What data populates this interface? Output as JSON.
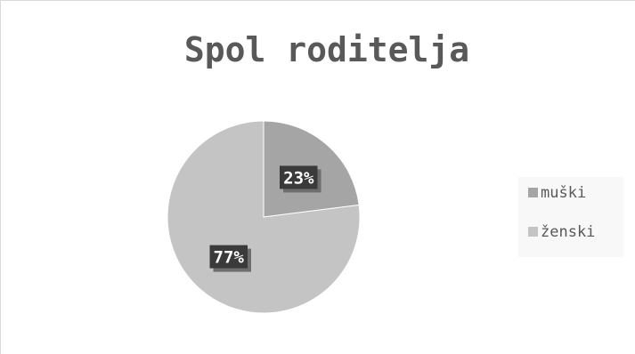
{
  "chart_data": {
    "type": "pie",
    "title": "Spol roditelja",
    "categories": [
      "muški",
      "ženski"
    ],
    "values": [
      23,
      77
    ],
    "data_labels": [
      "23%",
      "77%"
    ],
    "colors": [
      "#a5a5a5",
      "#c4c4c4"
    ],
    "label_bg_color": "#3a3a3a",
    "legend": {
      "placement": "right",
      "entries": [
        "muški",
        "ženski"
      ]
    }
  }
}
